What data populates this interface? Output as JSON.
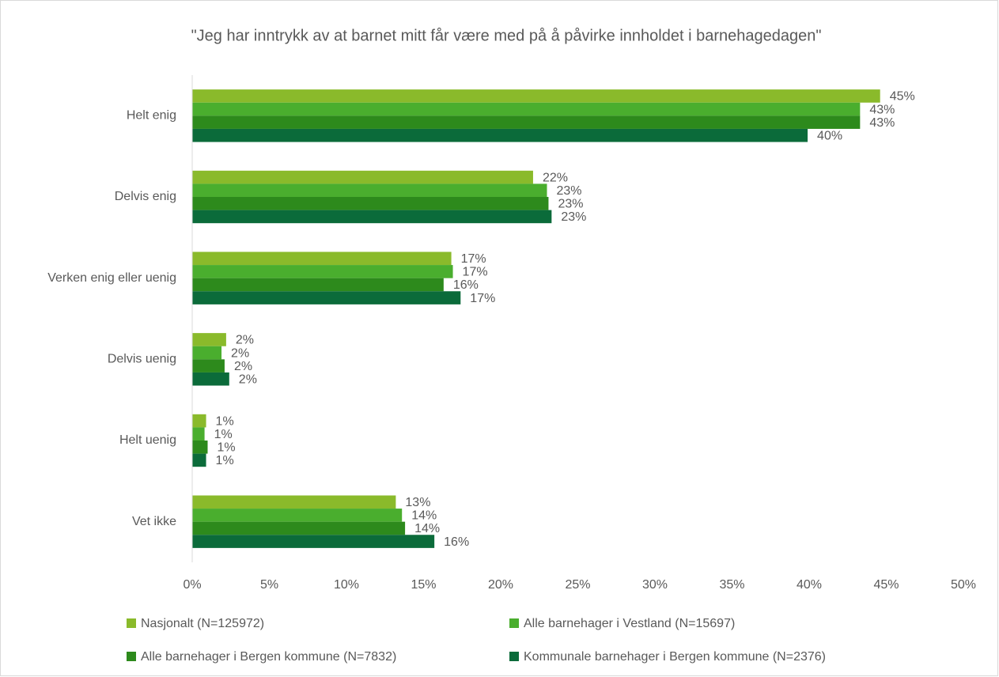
{
  "chart_data": {
    "type": "bar",
    "orientation": "horizontal",
    "title": "\"Jeg har inntrykk av at barnet mitt får være med på å påvirke innholdet i barnehagedagen\"",
    "categories": [
      "Helt enig",
      "Delvis enig",
      "Verken enig eller uenig",
      "Delvis uenig",
      "Helt uenig",
      "Vet ikke"
    ],
    "series": [
      {
        "name": "Nasjonalt (N=125972)",
        "color": "#8aba2b",
        "values": [
          44.6,
          22.1,
          16.8,
          2.2,
          0.9,
          13.2
        ],
        "value_labels": [
          "45%",
          "22%",
          "17%",
          "2%",
          "1%",
          "13%"
        ]
      },
      {
        "name": "Alle barnehager i Vestland (N=15697)",
        "color": "#4aae2e",
        "values": [
          43.3,
          23.0,
          16.9,
          1.9,
          0.8,
          13.6
        ],
        "value_labels": [
          "43%",
          "23%",
          "17%",
          "2%",
          "1%",
          "14%"
        ]
      },
      {
        "name": "Alle barnehager i Bergen kommune (N=7832)",
        "color": "#2d8a1c",
        "values": [
          43.3,
          23.1,
          16.3,
          2.1,
          1.0,
          13.8
        ],
        "value_labels": [
          "43%",
          "23%",
          "16%",
          "2%",
          "1%",
          "14%"
        ]
      },
      {
        "name": "Kommunale barnehager i Bergen kommune (N=2376)",
        "color": "#0b6b3a",
        "values": [
          39.9,
          23.3,
          17.4,
          2.4,
          0.9,
          15.7
        ],
        "value_labels": [
          "40%",
          "23%",
          "17%",
          "2%",
          "1%",
          "16%"
        ]
      }
    ],
    "xlim": [
      0,
      50
    ],
    "xticks": [
      {
        "value": 0,
        "label": "0%"
      },
      {
        "value": 5,
        "label": "5%"
      },
      {
        "value": 10,
        "label": "10%"
      },
      {
        "value": 15,
        "label": "15%"
      },
      {
        "value": 20,
        "label": "20%"
      },
      {
        "value": 25,
        "label": "25%"
      },
      {
        "value": 30,
        "label": "30%"
      },
      {
        "value": 35,
        "label": "35%"
      },
      {
        "value": 40,
        "label": "40%"
      },
      {
        "value": 45,
        "label": "45%"
      },
      {
        "value": 50,
        "label": "50%"
      }
    ],
    "grid": false,
    "legend": "bottom"
  }
}
